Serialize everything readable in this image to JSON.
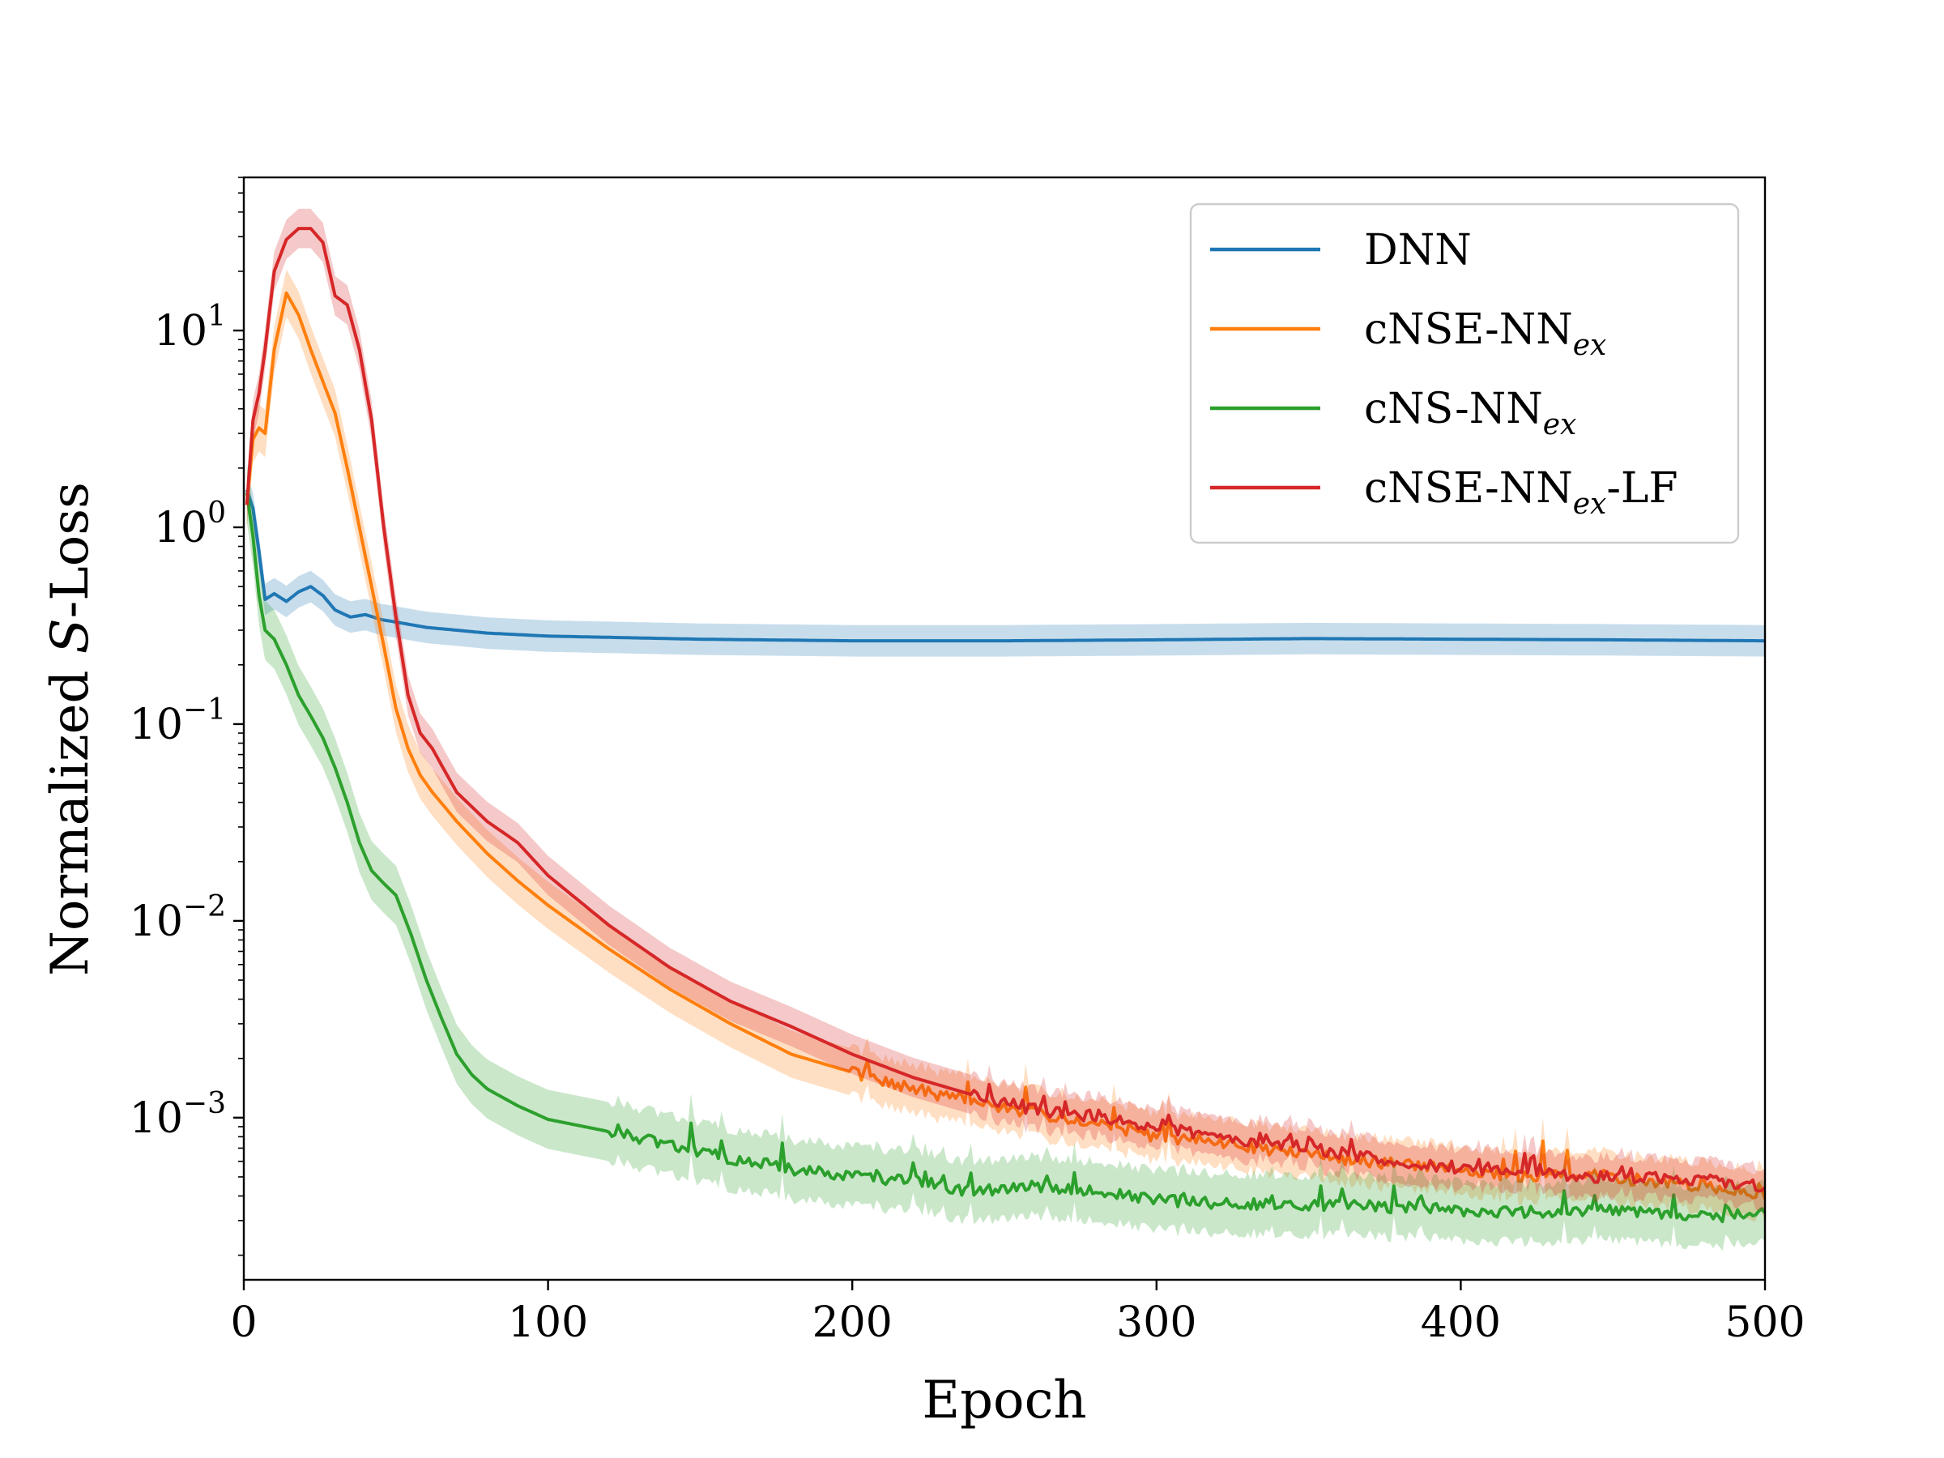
{
  "chart_data": {
    "type": "line",
    "xlabel": "Epoch",
    "ylabel_parts": {
      "prefix": "Normalized ",
      "var": "S",
      "suffix": "-Loss"
    },
    "xlim": [
      0,
      500
    ],
    "ylim": [
      0.00015,
      60
    ],
    "yscale": "log",
    "grid": false,
    "legend_position": "top-right",
    "xticks": [
      {
        "value": 0,
        "label": "0"
      },
      {
        "value": 100,
        "label": "100"
      },
      {
        "value": 200,
        "label": "200"
      },
      {
        "value": 300,
        "label": "300"
      },
      {
        "value": 400,
        "label": "400"
      },
      {
        "value": 500,
        "label": "500"
      }
    ],
    "yticks": [
      {
        "value": 10,
        "base": "10",
        "exp": "1"
      },
      {
        "value": 1,
        "base": "10",
        "exp": "0"
      },
      {
        "value": 0.1,
        "base": "10",
        "exp": "−1"
      },
      {
        "value": 0.01,
        "base": "10",
        "exp": "−2"
      },
      {
        "value": 0.001,
        "base": "10",
        "exp": "−3"
      }
    ],
    "series": [
      {
        "name": "DNN",
        "name_main": "DNN",
        "name_sub": "",
        "name_suffix": "",
        "color": "#1f77b4",
        "x": [
          1,
          3,
          5,
          7,
          10,
          14,
          18,
          22,
          26,
          30,
          35,
          40,
          45,
          50,
          60,
          70,
          80,
          100,
          150,
          200,
          250,
          300,
          350,
          400,
          450,
          500
        ],
        "y": [
          1.55,
          1.25,
          0.75,
          0.43,
          0.46,
          0.42,
          0.47,
          0.5,
          0.45,
          0.38,
          0.35,
          0.36,
          0.34,
          0.33,
          0.31,
          0.3,
          0.29,
          0.28,
          0.27,
          0.265,
          0.265,
          0.268,
          0.272,
          0.27,
          0.268,
          0.265
        ],
        "band": 0.08,
        "noise": 0
      },
      {
        "name": "cNSE-NNex",
        "name_main": "cNSE-NN",
        "name_sub": "ex",
        "name_suffix": "",
        "color": "#ff7f0e",
        "x": [
          1,
          3,
          5,
          7,
          10,
          14,
          18,
          22,
          26,
          30,
          34,
          38,
          42,
          46,
          50,
          54,
          58,
          62,
          66,
          70,
          80,
          90,
          100,
          120,
          140,
          160,
          180,
          200,
          220,
          240,
          260,
          280,
          300,
          320,
          340,
          360,
          380,
          400,
          420,
          440,
          460,
          480,
          500
        ],
        "y": [
          1.3,
          2.8,
          3.2,
          3.0,
          8,
          15.5,
          12,
          8,
          5.5,
          3.8,
          2.0,
          1.0,
          0.5,
          0.25,
          0.12,
          0.075,
          0.055,
          0.045,
          0.038,
          0.032,
          0.022,
          0.016,
          0.012,
          0.0072,
          0.0045,
          0.003,
          0.0021,
          0.0017,
          0.0014,
          0.0012,
          0.00105,
          0.00095,
          0.0008,
          0.00075,
          0.00068,
          0.00062,
          0.00058,
          0.00055,
          0.0005,
          0.00052,
          0.00048,
          0.00045,
          0.0004
        ],
        "band": 0.12,
        "noise": 0.45,
        "noise_start": 200,
        "seed": 7
      },
      {
        "name": "cNS-NNex",
        "name_main": "cNS-NN",
        "name_sub": "ex",
        "name_suffix": "",
        "color": "#2ca02c",
        "x": [
          1,
          3,
          5,
          7,
          10,
          14,
          18,
          22,
          26,
          30,
          34,
          38,
          42,
          46,
          50,
          55,
          60,
          65,
          70,
          75,
          80,
          90,
          100,
          120,
          140,
          160,
          180,
          200,
          220,
          240,
          260,
          280,
          300,
          320,
          340,
          360,
          380,
          400,
          420,
          440,
          460,
          480,
          500
        ],
        "y": [
          1.5,
          0.9,
          0.45,
          0.3,
          0.27,
          0.2,
          0.14,
          0.11,
          0.085,
          0.06,
          0.04,
          0.025,
          0.018,
          0.0155,
          0.0135,
          0.0085,
          0.005,
          0.0032,
          0.0021,
          0.00165,
          0.0014,
          0.00115,
          0.00098,
          0.00085,
          0.00072,
          0.00062,
          0.00055,
          0.0005,
          0.00048,
          0.00042,
          0.00045,
          0.00042,
          0.00038,
          0.00037,
          0.00036,
          0.00036,
          0.00035,
          0.00034,
          0.00033,
          0.00034,
          0.00033,
          0.00031,
          0.00033
        ],
        "band": 0.15,
        "noise": 0.35,
        "noise_start": 120,
        "seed": 13
      },
      {
        "name": "cNSE-NNex-LF",
        "name_main": "cNSE-NN",
        "name_sub": "ex",
        "name_suffix": "-LF",
        "color": "#d62728",
        "x": [
          1,
          3,
          5,
          7,
          10,
          14,
          18,
          22,
          26,
          30,
          34,
          38,
          42,
          46,
          50,
          54,
          58,
          62,
          66,
          70,
          80,
          90,
          100,
          120,
          140,
          160,
          180,
          200,
          220,
          240,
          260,
          280,
          300,
          320,
          340,
          360,
          380,
          400,
          420,
          440,
          460,
          480,
          500
        ],
        "y": [
          1.3,
          3.5,
          4.8,
          8,
          20,
          29,
          33,
          33,
          28,
          15,
          13.5,
          8,
          3.5,
          1.0,
          0.35,
          0.14,
          0.09,
          0.075,
          0.058,
          0.045,
          0.032,
          0.025,
          0.017,
          0.0095,
          0.0058,
          0.0039,
          0.0029,
          0.0021,
          0.0016,
          0.0013,
          0.0011,
          0.001,
          0.0009,
          0.0008,
          0.00074,
          0.00066,
          0.0006,
          0.00055,
          0.00055,
          0.0005,
          0.0005,
          0.00048,
          0.00045
        ],
        "band": 0.1,
        "noise": 0.22,
        "noise_start": 240,
        "seed": 29
      }
    ]
  }
}
